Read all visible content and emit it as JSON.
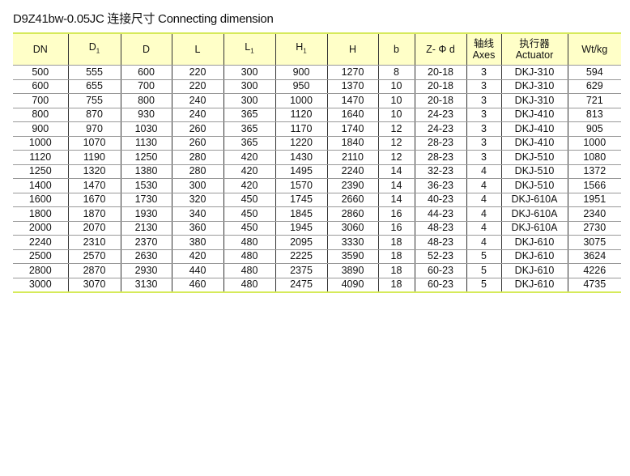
{
  "title": "D9Z41bw-0.05JC  连接尺寸  Connecting dimension",
  "headers": [
    {
      "main": "DN",
      "sub": ""
    },
    {
      "main": "D",
      "sub": "1"
    },
    {
      "main": "D",
      "sub": ""
    },
    {
      "main": "L",
      "sub": ""
    },
    {
      "main": "L",
      "sub": "1"
    },
    {
      "main": "H",
      "sub": "1"
    },
    {
      "main": "H",
      "sub": ""
    },
    {
      "main": "b",
      "sub": ""
    },
    {
      "main": "Z- Φ d",
      "sub": ""
    },
    {
      "main": "轴线",
      "line2": "Axes"
    },
    {
      "main": "执行器",
      "line2": "Actuator"
    },
    {
      "main": "Wt/kg",
      "sub": ""
    }
  ],
  "rows": [
    [
      "500",
      "555",
      "600",
      "220",
      "300",
      "900",
      "1270",
      "8",
      "20-18",
      "3",
      "DKJ-310",
      "594"
    ],
    [
      "600",
      "655",
      "700",
      "220",
      "300",
      "950",
      "1370",
      "10",
      "20-18",
      "3",
      "DKJ-310",
      "629"
    ],
    [
      "700",
      "755",
      "800",
      "240",
      "300",
      "1000",
      "1470",
      "10",
      "20-18",
      "3",
      "DKJ-310",
      "721"
    ],
    [
      "800",
      "870",
      "930",
      "240",
      "365",
      "1120",
      "1640",
      "10",
      "24-23",
      "3",
      "DKJ-410",
      "813"
    ],
    [
      "900",
      "970",
      "1030",
      "260",
      "365",
      "1170",
      "1740",
      "12",
      "24-23",
      "3",
      "DKJ-410",
      "905"
    ],
    [
      "1000",
      "1070",
      "1130",
      "260",
      "365",
      "1220",
      "1840",
      "12",
      "28-23",
      "3",
      "DKJ-410",
      "1000"
    ],
    [
      "1120",
      "1190",
      "1250",
      "280",
      "420",
      "1430",
      "2110",
      "12",
      "28-23",
      "3",
      "DKJ-510",
      "1080"
    ],
    [
      "1250",
      "1320",
      "1380",
      "280",
      "420",
      "1495",
      "2240",
      "14",
      "32-23",
      "4",
      "DKJ-510",
      "1372"
    ],
    [
      "1400",
      "1470",
      "1530",
      "300",
      "420",
      "1570",
      "2390",
      "14",
      "36-23",
      "4",
      "DKJ-510",
      "1566"
    ],
    [
      "1600",
      "1670",
      "1730",
      "320",
      "450",
      "1745",
      "2660",
      "14",
      "40-23",
      "4",
      "DKJ-610A",
      "1951"
    ],
    [
      "1800",
      "1870",
      "1930",
      "340",
      "450",
      "1845",
      "2860",
      "16",
      "44-23",
      "4",
      "DKJ-610A",
      "2340"
    ],
    [
      "2000",
      "2070",
      "2130",
      "360",
      "450",
      "1945",
      "3060",
      "16",
      "48-23",
      "4",
      "DKJ-610A",
      "2730"
    ],
    [
      "2240",
      "2310",
      "2370",
      "380",
      "480",
      "2095",
      "3330",
      "18",
      "48-23",
      "4",
      "DKJ-610",
      "3075"
    ],
    [
      "2500",
      "2570",
      "2630",
      "420",
      "480",
      "2225",
      "3590",
      "18",
      "52-23",
      "5",
      "DKJ-610",
      "3624"
    ],
    [
      "2800",
      "2870",
      "2930",
      "440",
      "480",
      "2375",
      "3890",
      "18",
      "60-23",
      "5",
      "DKJ-610",
      "4226"
    ],
    [
      "3000",
      "3070",
      "3130",
      "460",
      "480",
      "2475",
      "4090",
      "18",
      "60-23",
      "5",
      "DKJ-610",
      "4735"
    ]
  ]
}
